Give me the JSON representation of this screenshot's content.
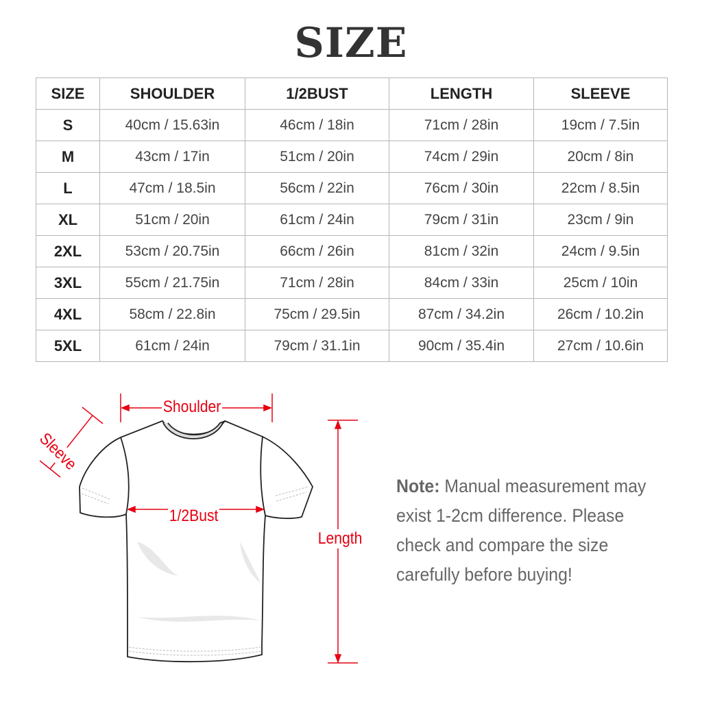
{
  "title": "SIZE",
  "table": {
    "headers": [
      "SIZE",
      "SHOULDER",
      "1/2BUST",
      "LENGTH",
      "SLEEVE"
    ],
    "rows": [
      [
        "S",
        "40cm / 15.63in",
        "46cm / 18in",
        "71cm / 28in",
        "19cm / 7.5in"
      ],
      [
        "M",
        "43cm / 17in",
        "51cm / 20in",
        "74cm / 29in",
        "20cm / 8in"
      ],
      [
        "L",
        "47cm / 18.5in",
        "56cm / 22in",
        "76cm / 30in",
        "22cm / 8.5in"
      ],
      [
        "XL",
        "51cm / 20in",
        "61cm / 24in",
        "79cm / 31in",
        "23cm / 9in"
      ],
      [
        "2XL",
        "53cm / 20.75in",
        "66cm / 26in",
        "81cm / 32in",
        "24cm / 9.5in"
      ],
      [
        "3XL",
        "55cm / 21.75in",
        "71cm / 28in",
        "84cm / 33in",
        "25cm / 10in"
      ],
      [
        "4XL",
        "58cm / 22.8in",
        "75cm / 29.5in",
        "87cm / 34.2in",
        "26cm / 10.2in"
      ],
      [
        "5XL",
        "61cm / 24in",
        "79cm / 31.1in",
        "90cm / 35.4in",
        "27cm / 10.6in"
      ]
    ]
  },
  "diagram": {
    "shoulder": "Shoulder",
    "sleeve": "Sleeve",
    "bust": "1/2Bust",
    "length": "Length",
    "accent_color": "#e60012"
  },
  "note": {
    "label": "Note:",
    "text": "Manual measurement may exist 1-2cm difference. Please check and compare the size carefully before buying!"
  }
}
